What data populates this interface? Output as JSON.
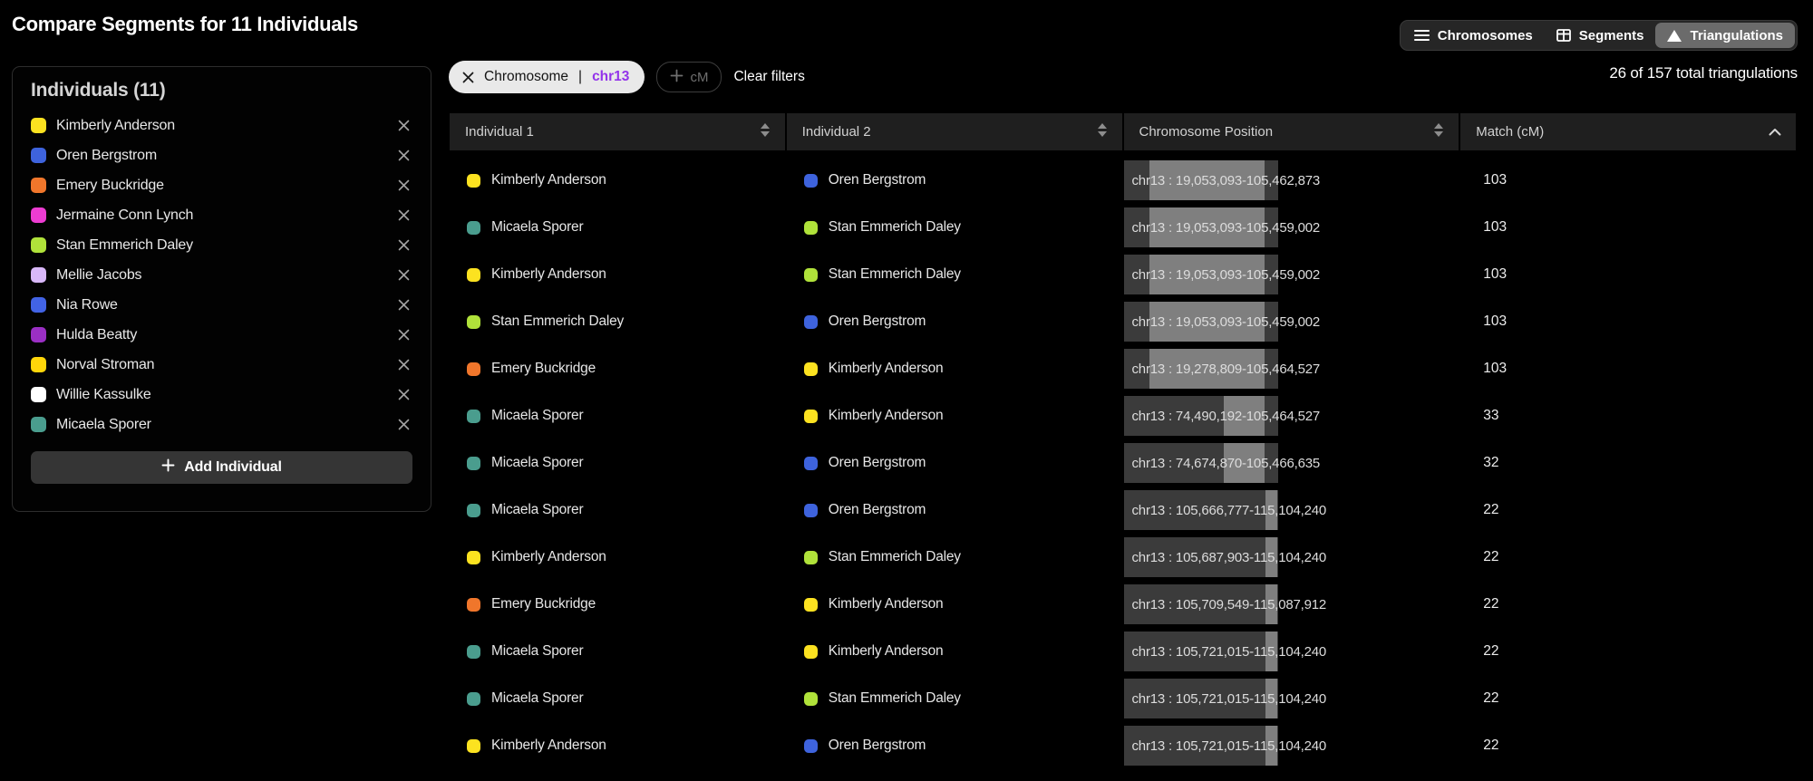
{
  "page": {
    "title": "Compare Segments for 11 Individuals",
    "summary": "26 of 157 total triangulations"
  },
  "view_toggle": {
    "options": [
      {
        "label": "Chromosomes",
        "icon": "list-icon",
        "active": false
      },
      {
        "label": "Segments",
        "icon": "table-icon",
        "active": false
      },
      {
        "label": "Triangulations",
        "icon": "triangle-icon",
        "active": true
      }
    ]
  },
  "filters": {
    "chromosome_chip": {
      "label": "Chromosome",
      "separator": "|",
      "value": "chr13",
      "value_color": "#9333ea"
    },
    "cm_pill_label": "cM",
    "clear_label": "Clear filters"
  },
  "sidebar": {
    "title": "Individuals (11)",
    "add_button_label": "Add Individual",
    "individuals": [
      {
        "name": "Kimberly Anderson",
        "color": "#fce220"
      },
      {
        "name": "Oren Bergstrom",
        "color": "#3e63dd"
      },
      {
        "name": "Emery Buckridge",
        "color": "#f0762b"
      },
      {
        "name": "Jermaine Conn Lynch",
        "color": "#ed3cd2"
      },
      {
        "name": "Stan Emmerich Daley",
        "color": "#b0e23a"
      },
      {
        "name": "Mellie Jacobs",
        "color": "#d9b8f9"
      },
      {
        "name": "Nia Rowe",
        "color": "#4263e5"
      },
      {
        "name": "Hulda Beatty",
        "color": "#9a2fc4"
      },
      {
        "name": "Norval Stroman",
        "color": "#ffd60a"
      },
      {
        "name": "Willie Kassulke",
        "color": "#ffffff"
      },
      {
        "name": "Micaela Sporer",
        "color": "#4a9d8e"
      }
    ]
  },
  "table": {
    "columns": [
      {
        "label": "Individual 1",
        "sort": "both"
      },
      {
        "label": "Individual 2",
        "sort": "both"
      },
      {
        "label": "Chromosome Position",
        "sort": "both"
      },
      {
        "label": "Match (cM)",
        "sort": "asc"
      }
    ],
    "chromosome_length": 115104240,
    "rows": [
      {
        "individual1": "Kimberly Anderson",
        "individual2": "Oren Bergstrom",
        "position": "chr13 : 19,053,093-105,462,873",
        "start": 19053093,
        "end": 105462873,
        "match_cm": "103"
      },
      {
        "individual1": "Micaela Sporer",
        "individual2": "Stan Emmerich Daley",
        "position": "chr13 : 19,053,093-105,459,002",
        "start": 19053093,
        "end": 105459002,
        "match_cm": "103"
      },
      {
        "individual1": "Kimberly Anderson",
        "individual2": "Stan Emmerich Daley",
        "position": "chr13 : 19,053,093-105,459,002",
        "start": 19053093,
        "end": 105459002,
        "match_cm": "103"
      },
      {
        "individual1": "Stan Emmerich Daley",
        "individual2": "Oren Bergstrom",
        "position": "chr13 : 19,053,093-105,459,002",
        "start": 19053093,
        "end": 105459002,
        "match_cm": "103"
      },
      {
        "individual1": "Emery Buckridge",
        "individual2": "Kimberly Anderson",
        "position": "chr13 : 19,278,809-105,464,527",
        "start": 19278809,
        "end": 105464527,
        "match_cm": "103"
      },
      {
        "individual1": "Micaela Sporer",
        "individual2": "Kimberly Anderson",
        "position": "chr13 : 74,490,192-105,464,527",
        "start": 74490192,
        "end": 105464527,
        "match_cm": "33"
      },
      {
        "individual1": "Micaela Sporer",
        "individual2": "Oren Bergstrom",
        "position": "chr13 : 74,674,870-105,466,635",
        "start": 74674870,
        "end": 105466635,
        "match_cm": "32"
      },
      {
        "individual1": "Micaela Sporer",
        "individual2": "Oren Bergstrom",
        "position": "chr13 : 105,666,777-115,104,240",
        "start": 105666777,
        "end": 115104240,
        "match_cm": "22"
      },
      {
        "individual1": "Kimberly Anderson",
        "individual2": "Stan Emmerich Daley",
        "position": "chr13 : 105,687,903-115,104,240",
        "start": 105687903,
        "end": 115104240,
        "match_cm": "22"
      },
      {
        "individual1": "Emery Buckridge",
        "individual2": "Kimberly Anderson",
        "position": "chr13 : 105,709,549-115,087,912",
        "start": 105709549,
        "end": 115087912,
        "match_cm": "22"
      },
      {
        "individual1": "Micaela Sporer",
        "individual2": "Kimberly Anderson",
        "position": "chr13 : 105,721,015-115,104,240",
        "start": 105721015,
        "end": 115104240,
        "match_cm": "22"
      },
      {
        "individual1": "Micaela Sporer",
        "individual2": "Stan Emmerich Daley",
        "position": "chr13 : 105,721,015-115,104,240",
        "start": 105721015,
        "end": 115104240,
        "match_cm": "22"
      },
      {
        "individual1": "Kimberly Anderson",
        "individual2": "Oren Bergstrom",
        "position": "chr13 : 105,721,015-115,104,240",
        "start": 105721015,
        "end": 115104240,
        "match_cm": "22"
      }
    ]
  }
}
